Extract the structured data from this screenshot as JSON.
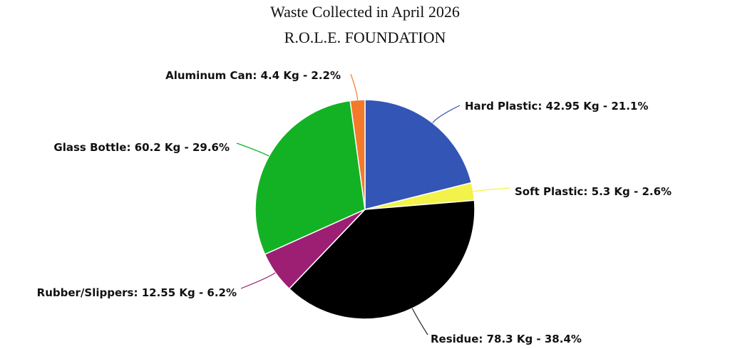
{
  "chart_data": {
    "type": "pie",
    "title": "Waste Collected in April 2026",
    "subtitle": "R.O.L.E. FOUNDATION",
    "unit": "Kg",
    "slices": [
      {
        "name": "Hard Plastic",
        "value": 42.95,
        "percent": "21.1%",
        "label": "Hard Plastic: 42.95 Kg - 21.1%",
        "color": "#3355b5"
      },
      {
        "name": "Soft Plastic",
        "value": 5.3,
        "percent": "2.6%",
        "label": "Soft Plastic: 5.3 Kg - 2.6%",
        "color": "#f2f24a"
      },
      {
        "name": "Residue",
        "value": 78.3,
        "percent": "38.4%",
        "label": "Residue: 78.3 Kg - 38.4%",
        "color": "#000000"
      },
      {
        "name": "Rubber/Slippers",
        "value": 12.55,
        "percent": "6.2%",
        "label": "Rubber/Slippers: 12.55 Kg - 6.2%",
        "color": "#9c1f74"
      },
      {
        "name": "Glass Bottle",
        "value": 60.2,
        "percent": "29.6%",
        "label": "Glass Bottle: 60.2 Kg - 29.6%",
        "color": "#12b224"
      },
      {
        "name": "Aluminum Can",
        "value": 4.4,
        "percent": "2.2%",
        "label": "Aluminum Can: 4.4 Kg - 2.2%",
        "color": "#f37a2a"
      }
    ]
  }
}
